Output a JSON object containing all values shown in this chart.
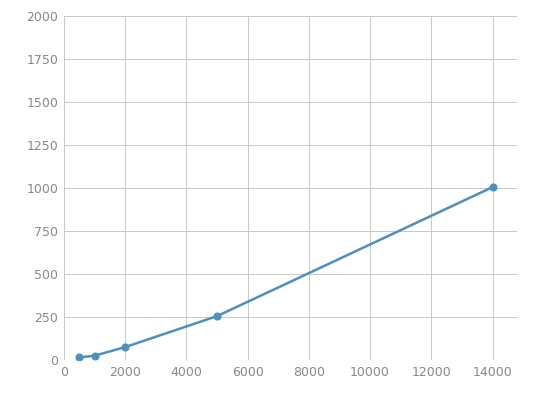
{
  "x": [
    500,
    1000,
    2000,
    5000,
    14000
  ],
  "y": [
    15,
    25,
    75,
    255,
    1005
  ],
  "line_color": "#4d8fbd",
  "marker_color": "#4d8fbd",
  "marker_size": 5,
  "line_width": 1.8,
  "xlim": [
    0,
    14800
  ],
  "ylim": [
    0,
    2000
  ],
  "xticks": [
    0,
    2000,
    4000,
    6000,
    8000,
    10000,
    12000,
    14000
  ],
  "yticks": [
    0,
    250,
    500,
    750,
    1000,
    1250,
    1500,
    1750,
    2000
  ],
  "grid_color": "#c8c8c8",
  "background_color": "#ffffff",
  "figsize": [
    5.33,
    4.0
  ],
  "dpi": 100,
  "tick_labelsize": 9,
  "tick_color": "#888888"
}
